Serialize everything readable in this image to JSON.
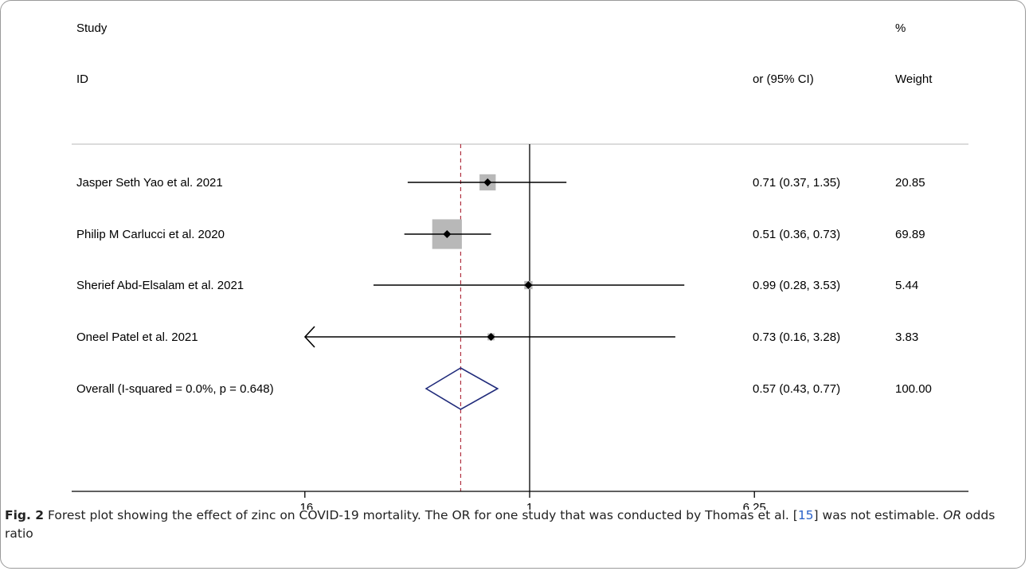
{
  "chart_data": {
    "type": "forest",
    "headers": {
      "study_top": "Study",
      "study_bottom": "ID",
      "estimate": "or (95% CI)",
      "weight_top": "%",
      "weight_bottom": "Weight"
    },
    "studies": [
      {
        "label": "Jasper Seth Yao et al. 2021",
        "or": 0.71,
        "lower": 0.37,
        "upper": 1.35,
        "or_text": "0.71 (0.37, 1.35)",
        "weight": 20.85,
        "weight_text": "20.85"
      },
      {
        "label": "Philip M Carlucci et al. 2020",
        "or": 0.51,
        "lower": 0.36,
        "upper": 0.73,
        "or_text": "0.51 (0.36, 0.73)",
        "weight": 69.89,
        "weight_text": "69.89"
      },
      {
        "label": "Sherief Abd-Elsalam et al. 2021",
        "or": 0.99,
        "lower": 0.28,
        "upper": 3.53,
        "or_text": "0.99 (0.28, 3.53)",
        "weight": 5.44,
        "weight_text": "5.44"
      },
      {
        "label": "Oneel Patel et al. 2021",
        "or": 0.73,
        "lower": 0.16,
        "upper": 3.28,
        "or_text": "0.73 (0.16, 3.28)",
        "weight": 3.83,
        "weight_text": "3.83"
      }
    ],
    "overall": {
      "label": "Overall  (I-squared = 0.0%, p = 0.648)",
      "or": 0.57,
      "lower": 0.43,
      "upper": 0.77,
      "or_text": "0.57 (0.43, 0.77)",
      "weight_text": "100.00"
    },
    "x_axis": {
      "scale": "log",
      "ticks": [
        0.16,
        1,
        6.25
      ],
      "tick_labels": [
        ".16",
        "1",
        "6.25"
      ],
      "null_line": 1
    },
    "colors": {
      "overall_diamond": "#1f2a7a",
      "pooled_line": "#b03040",
      "weight_box": "#b8b8b8"
    }
  },
  "caption": {
    "label": "Fig. 2",
    "text_1": "Forest plot showing the effect of zinc on COVID-19 mortality. The OR for one study that was conducted by Thomas et al. [",
    "ref": "15",
    "text_2": "] was not estimable. ",
    "abbr": "OR",
    "text_3": " odds ratio"
  }
}
